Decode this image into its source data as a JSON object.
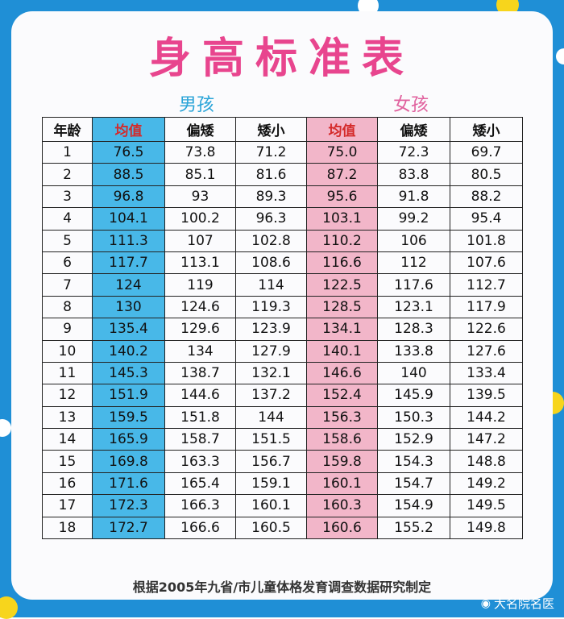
{
  "title": "身高标准表",
  "groups": {
    "boy": "男孩",
    "girl": "女孩"
  },
  "columns": [
    "年龄",
    "均值",
    "偏矮",
    "矮小",
    "均值",
    "偏矮",
    "矮小"
  ],
  "rows": [
    [
      "1",
      "76.5",
      "73.8",
      "71.2",
      "75.0",
      "72.3",
      "69.7"
    ],
    [
      "2",
      "88.5",
      "85.1",
      "81.6",
      "87.2",
      "83.8",
      "80.5"
    ],
    [
      "3",
      "96.8",
      "93",
      "89.3",
      "95.6",
      "91.8",
      "88.2"
    ],
    [
      "4",
      "104.1",
      "100.2",
      "96.3",
      "103.1",
      "99.2",
      "95.4"
    ],
    [
      "5",
      "111.3",
      "107",
      "102.8",
      "110.2",
      "106",
      "101.8"
    ],
    [
      "6",
      "117.7",
      "113.1",
      "108.6",
      "116.6",
      "112",
      "107.6"
    ],
    [
      "7",
      "124",
      "119",
      "114",
      "122.5",
      "117.6",
      "112.7"
    ],
    [
      "8",
      "130",
      "124.6",
      "119.3",
      "128.5",
      "123.1",
      "117.9"
    ],
    [
      "9",
      "135.4",
      "129.6",
      "123.9",
      "134.1",
      "128.3",
      "122.6"
    ],
    [
      "10",
      "140.2",
      "134",
      "127.9",
      "140.1",
      "133.8",
      "127.6"
    ],
    [
      "11",
      "145.3",
      "138.7",
      "132.1",
      "146.6",
      "140",
      "133.4"
    ],
    [
      "12",
      "151.9",
      "144.6",
      "137.2",
      "152.4",
      "145.9",
      "139.5"
    ],
    [
      "13",
      "159.5",
      "151.8",
      "144",
      "156.3",
      "150.3",
      "144.2"
    ],
    [
      "14",
      "165.9",
      "158.7",
      "151.5",
      "158.6",
      "152.9",
      "147.2"
    ],
    [
      "15",
      "169.8",
      "163.3",
      "156.7",
      "159.8",
      "154.3",
      "148.8"
    ],
    [
      "16",
      "171.6",
      "165.4",
      "159.1",
      "160.1",
      "154.7",
      "149.2"
    ],
    [
      "17",
      "172.3",
      "166.3",
      "160.1",
      "160.3",
      "154.9",
      "149.5"
    ],
    [
      "18",
      "172.7",
      "166.6",
      "160.5",
      "160.6",
      "155.2",
      "149.8"
    ]
  ],
  "footer": "根据2005年九省/市儿童体格发育调查数据研究制定",
  "watermark": "大名院名医",
  "colors": {
    "frame": "#1f8fd6",
    "boy_avg": "#48b8e8",
    "girl_avg": "#f2b6c9",
    "title": "#e8458e"
  }
}
